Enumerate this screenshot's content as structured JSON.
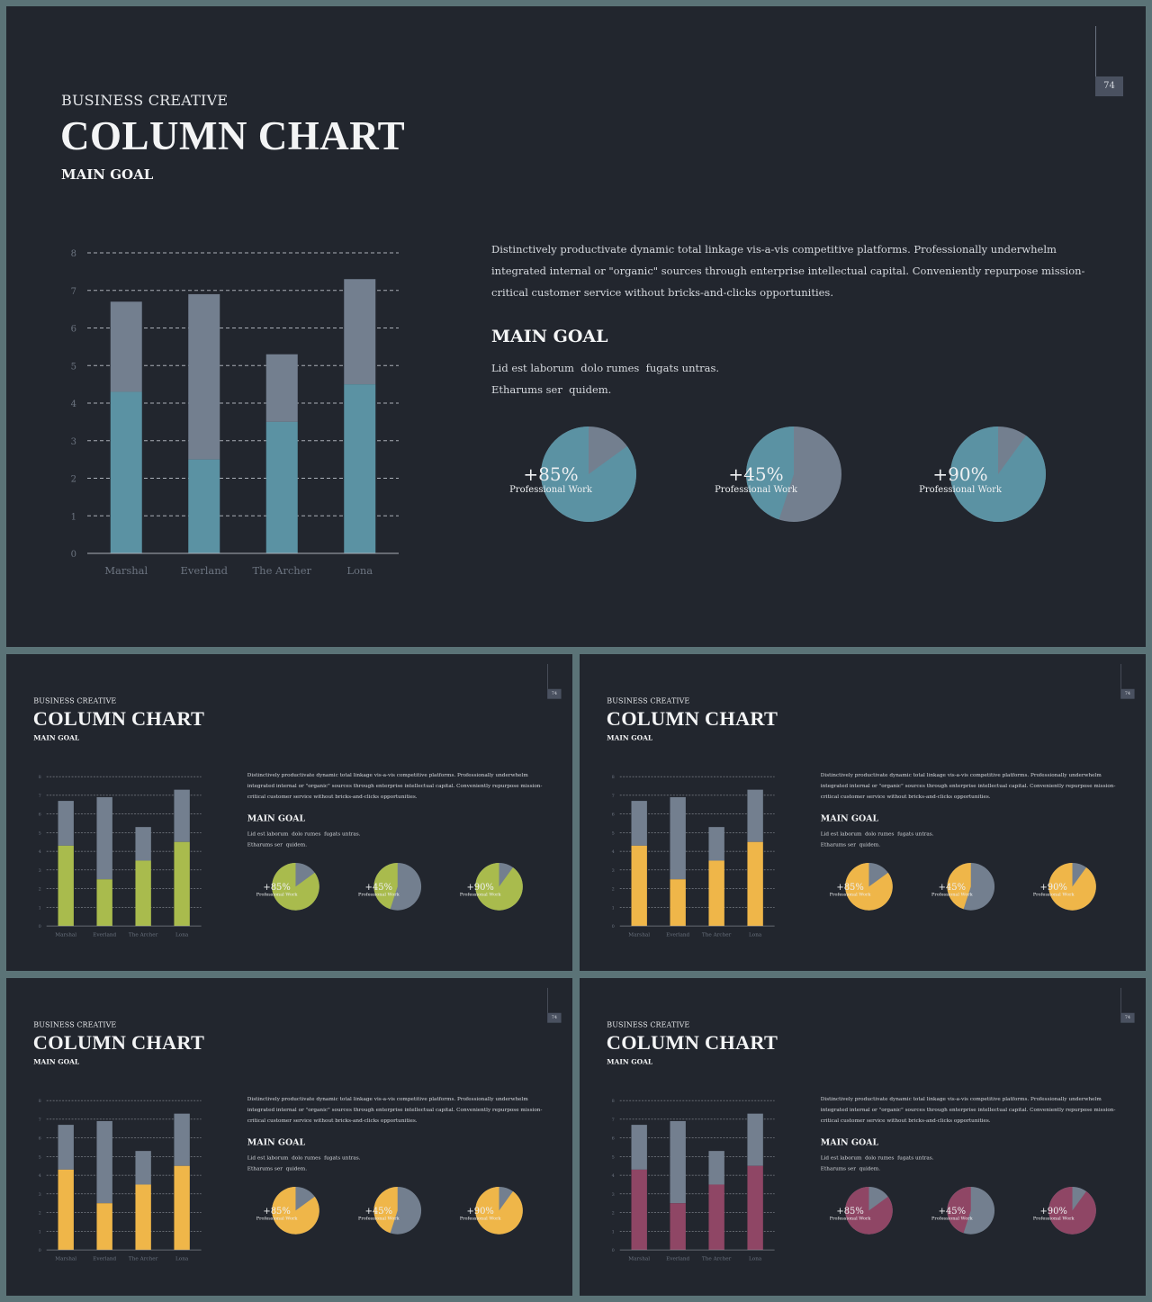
{
  "slide": {
    "page_number": "74",
    "kicker": "BUSINESS CREATIVE",
    "title": "COLUMN CHART",
    "subtitle": "MAIN GOAL",
    "description": "Distinctively productivate dynamic total linkage vis-a-vis competitive platforms. Professionally underwhelm integrated internal or \"organic\" sources through enterprise intellectual capital. Conveniently repurpose mission-critical customer service without bricks-and-clicks opportunities.",
    "goal_heading": "MAIN GOAL",
    "goal_lines": [
      "Lid est laborum  dolo rumes  fugats untras.",
      "Etharums ser  quidem."
    ]
  },
  "chart_data": {
    "type": "bar",
    "stacked": true,
    "categories": [
      "Marshal",
      "Everland",
      "The Archer",
      "Lona"
    ],
    "series": [
      {
        "values": [
          4.3,
          2.5,
          3.5,
          4.5
        ]
      },
      {
        "values": [
          2.4,
          4.4,
          1.8,
          2.8
        ]
      }
    ],
    "ylim": [
      0,
      8
    ],
    "yticks": [
      "0",
      "1",
      "2",
      "3",
      "4",
      "5",
      "6",
      "7",
      "8"
    ],
    "grid": "dashed"
  },
  "pies": [
    {
      "value": 85,
      "label": "+85%",
      "caption": "Professional Work"
    },
    {
      "value": 45,
      "label": "+45%",
      "caption": "Professional Work"
    },
    {
      "value": 90,
      "label": "+90%",
      "caption": "Professional Work"
    }
  ],
  "colors": {
    "secondary": "#737f8f",
    "grid": "#a9aeb6",
    "axis_text": "#6c7480",
    "variants": [
      "#5b92a3",
      "#a9bb4d",
      "#efb649",
      "#efb649",
      "#8f4665"
    ]
  }
}
